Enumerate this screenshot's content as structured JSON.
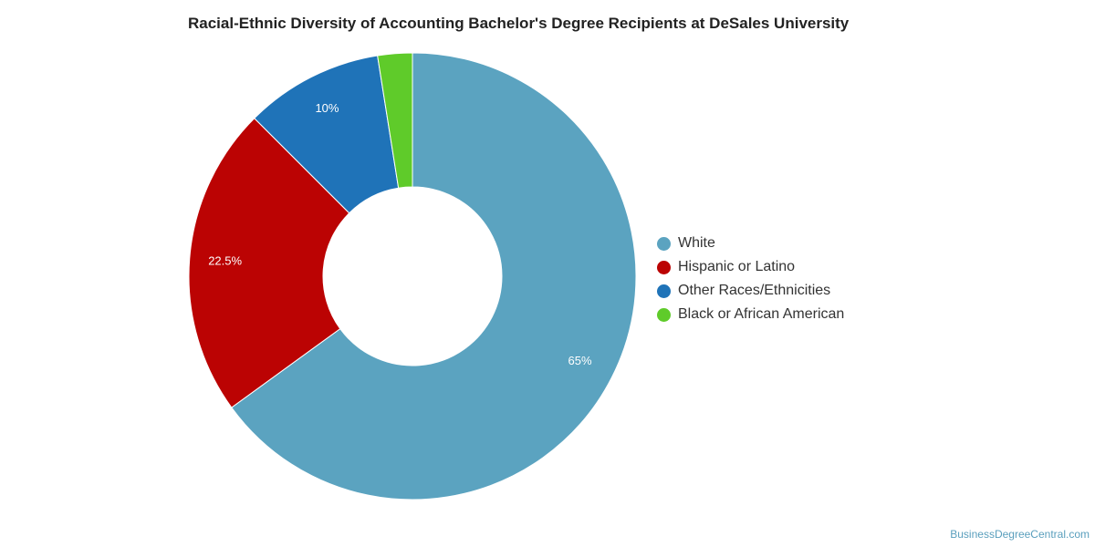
{
  "chart_data": {
    "type": "pie",
    "title": "Racial-Ethnic Diversity of Accounting Bachelor's Degree Recipients at DeSales University",
    "donut": true,
    "legend_position": "right",
    "slices": [
      {
        "name": "White",
        "value": 65,
        "label": "65%",
        "color": "#5ba3c0"
      },
      {
        "name": "Hispanic or Latino",
        "value": 22.5,
        "label": "22.5%",
        "color": "#bb0303"
      },
      {
        "name": "Other Races/Ethnicities",
        "value": 10,
        "label": "10%",
        "color": "#1f73b8"
      },
      {
        "name": "Black or African American",
        "value": 2.5,
        "label": "",
        "color": "#5fcb2a"
      }
    ]
  },
  "footer": {
    "source": "BusinessDegreeCentral.com"
  }
}
